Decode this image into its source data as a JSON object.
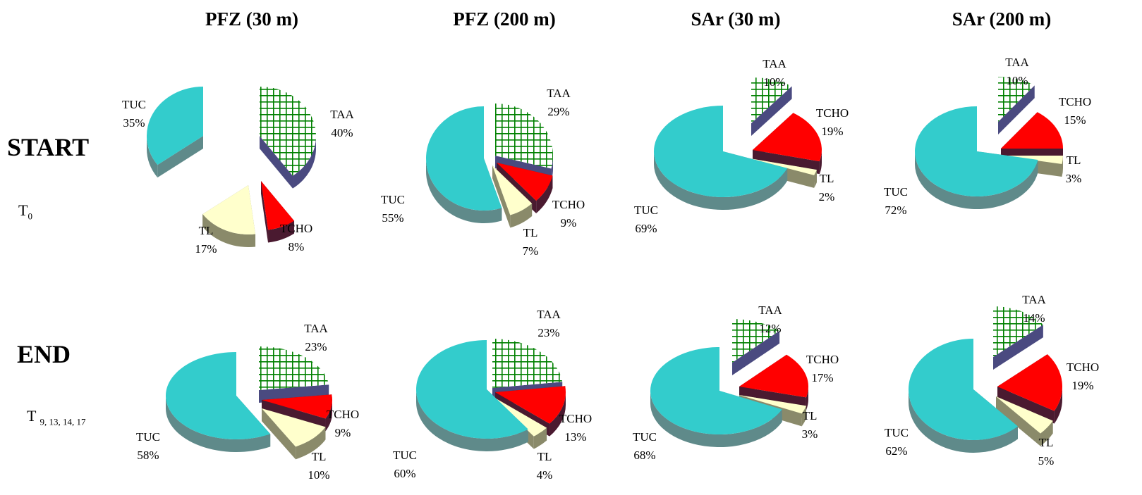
{
  "columns": [
    "PFZ (30 m)",
    "PFZ (200 m)",
    "SAr (30 m)",
    "SAr (200 m)"
  ],
  "rows": [
    {
      "label": "START",
      "sub_main": "T",
      "sub_index": "0"
    },
    {
      "label": "END",
      "sub_main": "T",
      "sub_index": "9, 13, 14, 17"
    }
  ],
  "colors": {
    "TAA": "#008000",
    "TCHO": "#ff0000",
    "TL": "#ffffcc",
    "TUC": "#33cccc",
    "TAA_side": "#4a4a80",
    "TCHO_side": "#4a1a30",
    "TL_side": "#8a8a6a",
    "TUC_side": "#5f8a8a"
  },
  "chart_data": [
    {
      "type": "pie",
      "title": "PFZ (30 m)",
      "row": "START",
      "categories": [
        "TAA",
        "TCHO",
        "TL",
        "TUC"
      ],
      "values": [
        40,
        8,
        17,
        35
      ],
      "labels": [
        "40%",
        "8%",
        "17%",
        "35%"
      ]
    },
    {
      "type": "pie",
      "title": "PFZ (200 m)",
      "row": "START",
      "categories": [
        "TAA",
        "TCHO",
        "TL",
        "TUC"
      ],
      "values": [
        29,
        9,
        7,
        55
      ],
      "labels": [
        "29%",
        "9%",
        "7%",
        "55%"
      ]
    },
    {
      "type": "pie",
      "title": "SAr (30 m)",
      "row": "START",
      "categories": [
        "TAA",
        "TCHO",
        "TL",
        "TUC"
      ],
      "values": [
        10,
        19,
        2,
        69
      ],
      "labels": [
        "10%",
        "19%",
        "2%",
        "69%"
      ]
    },
    {
      "type": "pie",
      "title": "SAr (200 m)",
      "row": "START",
      "categories": [
        "TAA",
        "TCHO",
        "TL",
        "TUC"
      ],
      "values": [
        10,
        15,
        3,
        72
      ],
      "labels": [
        "10%",
        "15%",
        "3%",
        "72%"
      ]
    },
    {
      "type": "pie",
      "title": "PFZ (30 m)",
      "row": "END",
      "categories": [
        "TAA",
        "TCHO",
        "TL",
        "TUC"
      ],
      "values": [
        23,
        9,
        10,
        58
      ],
      "labels": [
        "23%",
        "9%",
        "10%",
        "58%"
      ]
    },
    {
      "type": "pie",
      "title": "PFZ (200 m)",
      "row": "END",
      "categories": [
        "TAA",
        "TCHO",
        "TL",
        "TUC"
      ],
      "values": [
        23,
        13,
        4,
        60
      ],
      "labels": [
        "23%",
        "13%",
        "4%",
        "60%"
      ]
    },
    {
      "type": "pie",
      "title": "SAr (30 m)",
      "row": "END",
      "categories": [
        "TAA",
        "TCHO",
        "TL",
        "TUC"
      ],
      "values": [
        12,
        17,
        3,
        68
      ],
      "labels": [
        "12%",
        "17%",
        "3%",
        "68%"
      ]
    },
    {
      "type": "pie",
      "title": "SAr (200 m)",
      "row": "END",
      "categories": [
        "TAA",
        "TCHO",
        "TL",
        "TUC"
      ],
      "values": [
        14,
        19,
        5,
        62
      ],
      "labels": [
        "14%",
        "19%",
        "5%",
        "62%"
      ]
    }
  ]
}
